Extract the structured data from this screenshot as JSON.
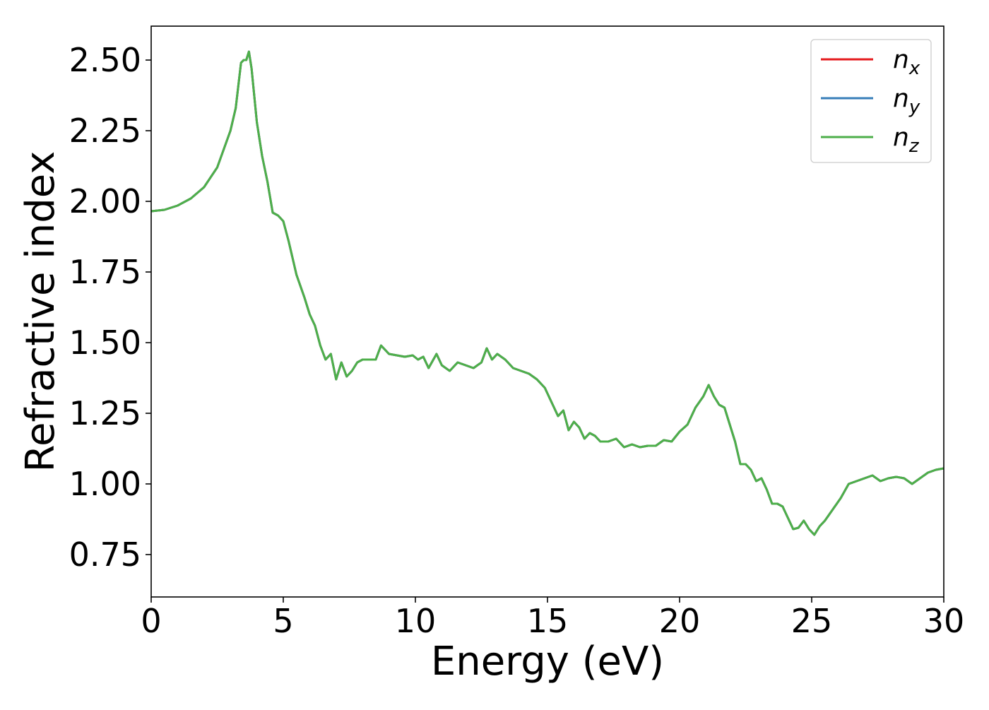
{
  "chart_data": {
    "type": "line",
    "xlabel": "Energy (eV)",
    "ylabel": "Refractive index",
    "xlim": [
      0,
      30
    ],
    "ylim": [
      0.6,
      2.62
    ],
    "xticks": [
      0,
      5,
      10,
      15,
      20,
      25,
      30
    ],
    "xtick_labels": [
      "0",
      "5",
      "10",
      "15",
      "20",
      "25",
      "30"
    ],
    "yticks": [
      0.75,
      1.0,
      1.25,
      1.5,
      1.75,
      2.0,
      2.25,
      2.5
    ],
    "ytick_labels": [
      "0.75",
      "1.00",
      "1.25",
      "1.50",
      "1.75",
      "2.00",
      "2.25",
      "2.50"
    ],
    "grid": false,
    "legend_position": "top-right",
    "x": [
      0,
      0.5,
      1.0,
      1.5,
      2.0,
      2.5,
      3.0,
      3.2,
      3.4,
      3.5,
      3.6,
      3.7,
      3.8,
      4.0,
      4.2,
      4.4,
      4.6,
      4.8,
      5.0,
      5.2,
      5.5,
      5.8,
      6.0,
      6.2,
      6.4,
      6.6,
      6.8,
      7.0,
      7.2,
      7.4,
      7.6,
      7.8,
      8.0,
      8.3,
      8.5,
      8.7,
      9.0,
      9.3,
      9.6,
      9.9,
      10.1,
      10.3,
      10.5,
      10.8,
      11.0,
      11.3,
      11.6,
      11.9,
      12.2,
      12.5,
      12.7,
      12.9,
      13.1,
      13.4,
      13.7,
      14.0,
      14.3,
      14.6,
      14.9,
      15.2,
      15.4,
      15.6,
      15.8,
      16.0,
      16.2,
      16.4,
      16.6,
      16.8,
      17.0,
      17.3,
      17.6,
      17.9,
      18.2,
      18.5,
      18.8,
      19.1,
      19.4,
      19.7,
      20.0,
      20.3,
      20.6,
      20.9,
      21.1,
      21.3,
      21.5,
      21.7,
      21.9,
      22.1,
      22.3,
      22.5,
      22.7,
      22.9,
      23.1,
      23.3,
      23.5,
      23.7,
      23.9,
      24.1,
      24.3,
      24.5,
      24.7,
      24.9,
      25.1,
      25.3,
      25.5,
      25.8,
      26.1,
      26.4,
      26.7,
      27.0,
      27.3,
      27.6,
      27.9,
      28.2,
      28.5,
      28.8,
      29.1,
      29.4,
      29.7,
      30.0
    ],
    "series": [
      {
        "name": "n_x",
        "legend_base": "n",
        "legend_sub": "x",
        "color": "#e41a1c",
        "values": [
          1.965,
          1.97,
          1.985,
          2.01,
          2.05,
          2.12,
          2.25,
          2.33,
          2.49,
          2.5,
          2.5,
          2.53,
          2.47,
          2.28,
          2.16,
          2.07,
          1.96,
          1.95,
          1.93,
          1.86,
          1.74,
          1.66,
          1.6,
          1.56,
          1.49,
          1.44,
          1.46,
          1.37,
          1.43,
          1.38,
          1.4,
          1.43,
          1.44,
          1.44,
          1.44,
          1.49,
          1.46,
          1.455,
          1.45,
          1.455,
          1.44,
          1.45,
          1.41,
          1.46,
          1.42,
          1.4,
          1.43,
          1.42,
          1.41,
          1.43,
          1.48,
          1.44,
          1.46,
          1.44,
          1.41,
          1.4,
          1.39,
          1.37,
          1.34,
          1.28,
          1.24,
          1.26,
          1.19,
          1.22,
          1.2,
          1.16,
          1.18,
          1.17,
          1.15,
          1.15,
          1.16,
          1.13,
          1.14,
          1.13,
          1.135,
          1.135,
          1.155,
          1.15,
          1.185,
          1.21,
          1.27,
          1.31,
          1.35,
          1.31,
          1.28,
          1.27,
          1.21,
          1.15,
          1.07,
          1.07,
          1.05,
          1.01,
          1.02,
          0.98,
          0.93,
          0.93,
          0.92,
          0.88,
          0.84,
          0.845,
          0.87,
          0.84,
          0.82,
          0.85,
          0.87,
          0.91,
          0.95,
          1.0,
          1.01,
          1.02,
          1.03,
          1.01,
          1.02,
          1.025,
          1.02,
          1.0,
          1.02,
          1.04,
          1.05,
          1.055
        ]
      },
      {
        "name": "n_y",
        "legend_base": "n",
        "legend_sub": "y",
        "color": "#377eb8",
        "values": [
          1.965,
          1.97,
          1.985,
          2.01,
          2.05,
          2.12,
          2.25,
          2.33,
          2.49,
          2.5,
          2.5,
          2.53,
          2.47,
          2.28,
          2.16,
          2.07,
          1.96,
          1.95,
          1.93,
          1.86,
          1.74,
          1.66,
          1.6,
          1.56,
          1.49,
          1.44,
          1.46,
          1.37,
          1.43,
          1.38,
          1.4,
          1.43,
          1.44,
          1.44,
          1.44,
          1.49,
          1.46,
          1.455,
          1.45,
          1.455,
          1.44,
          1.45,
          1.41,
          1.46,
          1.42,
          1.4,
          1.43,
          1.42,
          1.41,
          1.43,
          1.48,
          1.44,
          1.46,
          1.44,
          1.41,
          1.4,
          1.39,
          1.37,
          1.34,
          1.28,
          1.24,
          1.26,
          1.19,
          1.22,
          1.2,
          1.16,
          1.18,
          1.17,
          1.15,
          1.15,
          1.16,
          1.13,
          1.14,
          1.13,
          1.135,
          1.135,
          1.155,
          1.15,
          1.185,
          1.21,
          1.27,
          1.31,
          1.35,
          1.31,
          1.28,
          1.27,
          1.21,
          1.15,
          1.07,
          1.07,
          1.05,
          1.01,
          1.02,
          0.98,
          0.93,
          0.93,
          0.92,
          0.88,
          0.84,
          0.845,
          0.87,
          0.84,
          0.82,
          0.85,
          0.87,
          0.91,
          0.95,
          1.0,
          1.01,
          1.02,
          1.03,
          1.01,
          1.02,
          1.025,
          1.02,
          1.0,
          1.02,
          1.04,
          1.05,
          1.055
        ]
      },
      {
        "name": "n_z",
        "legend_base": "n",
        "legend_sub": "z",
        "color": "#4daf4a",
        "values": [
          1.965,
          1.97,
          1.985,
          2.01,
          2.05,
          2.12,
          2.25,
          2.33,
          2.49,
          2.5,
          2.5,
          2.53,
          2.47,
          2.28,
          2.16,
          2.07,
          1.96,
          1.95,
          1.93,
          1.86,
          1.74,
          1.66,
          1.6,
          1.56,
          1.49,
          1.44,
          1.46,
          1.37,
          1.43,
          1.38,
          1.4,
          1.43,
          1.44,
          1.44,
          1.44,
          1.49,
          1.46,
          1.455,
          1.45,
          1.455,
          1.44,
          1.45,
          1.41,
          1.46,
          1.42,
          1.4,
          1.43,
          1.42,
          1.41,
          1.43,
          1.48,
          1.44,
          1.46,
          1.44,
          1.41,
          1.4,
          1.39,
          1.37,
          1.34,
          1.28,
          1.24,
          1.26,
          1.19,
          1.22,
          1.2,
          1.16,
          1.18,
          1.17,
          1.15,
          1.15,
          1.16,
          1.13,
          1.14,
          1.13,
          1.135,
          1.135,
          1.155,
          1.15,
          1.185,
          1.21,
          1.27,
          1.31,
          1.35,
          1.31,
          1.28,
          1.27,
          1.21,
          1.15,
          1.07,
          1.07,
          1.05,
          1.01,
          1.02,
          0.98,
          0.93,
          0.93,
          0.92,
          0.88,
          0.84,
          0.845,
          0.87,
          0.84,
          0.82,
          0.85,
          0.87,
          0.91,
          0.95,
          1.0,
          1.01,
          1.02,
          1.03,
          1.01,
          1.02,
          1.025,
          1.02,
          1.0,
          1.02,
          1.04,
          1.05,
          1.055
        ]
      }
    ]
  }
}
